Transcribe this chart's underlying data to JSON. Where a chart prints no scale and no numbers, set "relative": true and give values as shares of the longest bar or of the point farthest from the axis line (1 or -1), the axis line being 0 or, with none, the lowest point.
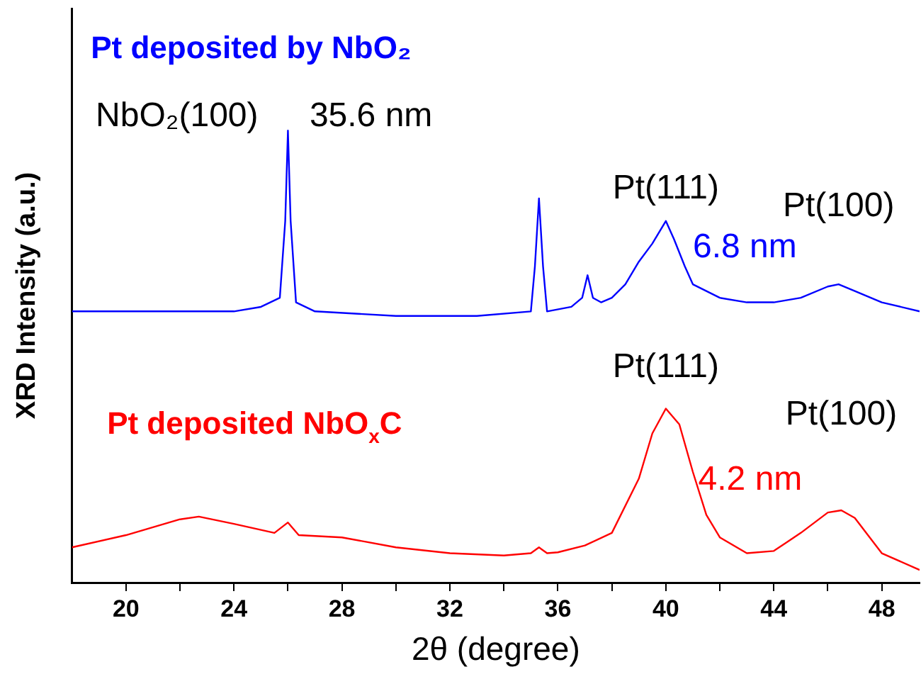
{
  "chart_data": {
    "type": "line",
    "relative": true,
    "xlabel": "2θ (degree)",
    "ylabel": "XRD Intensity (a.u.)",
    "xlim": [
      18,
      49.4
    ],
    "xticks": [
      20,
      {
        "value": 22,
        "label": null
      },
      24,
      {
        "value": 26,
        "label": null
      },
      28,
      {
        "value": 30,
        "label": null
      },
      32,
      {
        "value": 34,
        "label": null
      },
      36,
      {
        "value": 38,
        "label": null
      },
      40,
      {
        "value": 42,
        "label": null
      },
      44,
      {
        "value": 46,
        "label": null
      },
      48
    ],
    "legend": false,
    "grid": false,
    "series": [
      {
        "name": "Pt deposited by NbO₂",
        "color": "#0000ff",
        "x": [
          18,
          20,
          22,
          24,
          25,
          25.7,
          25.9,
          26,
          26.1,
          26.3,
          27,
          30,
          33,
          35,
          35.15,
          35.3,
          35.45,
          35.6,
          36.5,
          36.9,
          37.1,
          37.3,
          37.6,
          38,
          38.5,
          39,
          39.5,
          40,
          40.3,
          40.7,
          41,
          42,
          43,
          44,
          45,
          46,
          46.4,
          47,
          48,
          49.4
        ],
        "values": [
          0.6,
          0.6,
          0.6,
          0.6,
          0.61,
          0.63,
          0.8,
          1.0,
          0.8,
          0.62,
          0.6,
          0.59,
          0.59,
          0.6,
          0.7,
          0.85,
          0.7,
          0.6,
          0.61,
          0.63,
          0.68,
          0.63,
          0.62,
          0.63,
          0.66,
          0.71,
          0.75,
          0.8,
          0.76,
          0.7,
          0.66,
          0.63,
          0.62,
          0.62,
          0.63,
          0.655,
          0.66,
          0.645,
          0.62,
          0.6
        ]
      },
      {
        "name": "Pt deposited NbO$_{x}$C",
        "color": "#ff0000",
        "x": [
          18,
          20,
          22,
          22.7,
          24,
          25.5,
          26,
          26.4,
          28,
          30,
          32,
          34,
          35,
          35.3,
          35.6,
          36,
          37,
          38,
          39,
          39.5,
          40,
          40.5,
          41,
          41.5,
          42,
          43,
          44,
          45,
          46,
          46.5,
          47,
          48,
          49.4
        ],
        "values": [
          0.078,
          0.105,
          0.14,
          0.146,
          0.13,
          0.11,
          0.133,
          0.105,
          0.1,
          0.078,
          0.065,
          0.06,
          0.065,
          0.078,
          0.065,
          0.067,
          0.082,
          0.11,
          0.23,
          0.33,
          0.385,
          0.35,
          0.245,
          0.15,
          0.1,
          0.065,
          0.07,
          0.11,
          0.155,
          0.16,
          0.143,
          0.065,
          0.028
        ]
      }
    ],
    "annotations": [
      {
        "text": "NbO₂(100)",
        "x": 26,
        "y": 1.0
      },
      {
        "text": "35.6 nm",
        "x": 26,
        "y": 1.0
      },
      {
        "text": "Pt(111)",
        "x": 40,
        "y": 0.8
      },
      {
        "text": "Pt(100)",
        "x": 46.4,
        "y": 0.66
      },
      {
        "text": "6.8 nm",
        "x": 40,
        "y": 0.8
      },
      {
        "text": "Pt(111)",
        "x": 40,
        "y": 0.385
      },
      {
        "text": "Pt(100)",
        "x": 46.5,
        "y": 0.16
      },
      {
        "text": "4.2 nm",
        "x": 40,
        "y": 0.385
      }
    ]
  }
}
